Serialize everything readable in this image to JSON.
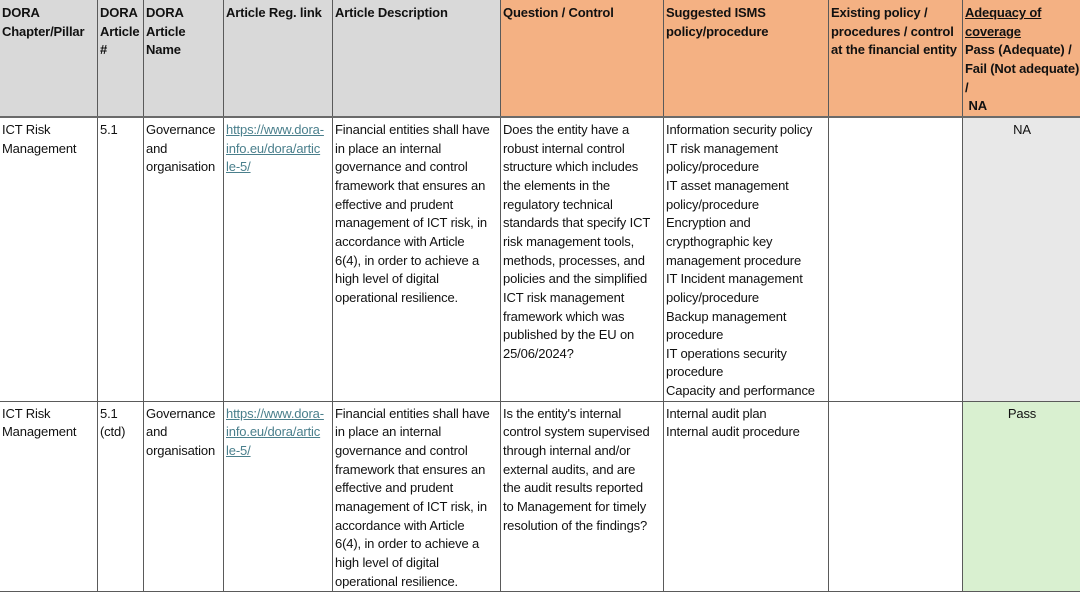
{
  "colors": {
    "header_gray": "#d9d9d9",
    "header_orange": "#f4b183",
    "link": "#4a7f8c",
    "na_fill": "#e8e8e8",
    "pass_fill": "#d9f0d0"
  },
  "headers": {
    "chapter": "DORA\nChapter/Pillar",
    "article_no": "DORA\nArticle\n#",
    "article_name": "DORA\nArticle\nName",
    "reg_link": "Article Reg. link",
    "description": "Article Description",
    "question": "Question / Control",
    "suggested": "Suggested ISMS\npolicy/procedure",
    "existing": "Existing policy /\nprocedures / control\nat the financial entity",
    "adequacy_title": "Adequacy of\ncoverage",
    "adequacy_options": "Pass (Adequate) /\nFail (Not adequate)\n/\n NA"
  },
  "rows": [
    {
      "chapter": "ICT Risk\nManagement",
      "article_no": "5.1",
      "article_name": "Governance\nand\norganisation",
      "reg_link": "https://www.dora-\ninfo.eu/dora/artic\nle-5/",
      "description": "Financial entities shall have\nin place an internal\ngovernance and control\nframework that ensures an\neffective and prudent\nmanagement of ICT risk, in\naccordance with Article\n6(4), in order to achieve a\nhigh level of digital\noperational resilience.",
      "question": "Does the entity have a\nrobust internal control\nstructure which includes\nthe elements in the\nregulatory technical\nstandards that specify ICT\nrisk management tools,\nmethods, processes, and\npolicies and the simplified\nICT risk management\nframework which was\npublished by the EU on\n25/06/2024?",
      "suggested": "Information security policy\nIT risk management\npolicy/procedure\nIT asset management\npolicy/procedure\nEncryption and\ncrypthographic key\nmanagement procedure\nIT Incident management\npolicy/procedure\nBackup management\nprocedure\nIT operations security\nprocedure\nCapacity and performance",
      "existing": "",
      "adequacy": "NA"
    },
    {
      "chapter": "ICT Risk\nManagement",
      "article_no": "5.1\n(ctd)",
      "article_name": "Governance\nand\norganisation",
      "reg_link": "https://www.dora-\ninfo.eu/dora/artic\nle-5/",
      "description": "Financial entities shall have\nin place an internal\ngovernance and control\nframework that ensures an\neffective and prudent\nmanagement of ICT risk, in\naccordance with Article\n6(4), in order to achieve a\nhigh level of digital\noperational resilience.",
      "question": "Is the entity's internal\ncontrol system supervised\nthrough internal and/or\nexternal audits, and are\nthe audit results reported\nto Management for timely\nresolution of the findings?",
      "suggested": "Internal audit plan\nInternal audit procedure",
      "existing": "",
      "adequacy": "Pass"
    }
  ]
}
